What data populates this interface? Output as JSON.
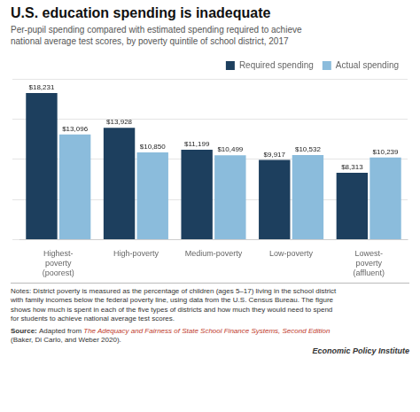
{
  "chart_data": {
    "type": "bar",
    "title": "U.S. education spending is inadequate",
    "subtitle": "Per-pupil spending compared with estimated spending required to achieve\nnational average test scores, by poverty quintile of school district, 2017",
    "categories": [
      "Highest-\npoverty\n(poorest)",
      "High-poverty",
      "Medium-poverty",
      "Low-poverty",
      "Lowest-\npoverty\n(affluent)"
    ],
    "series": [
      {
        "name": "Required spending",
        "color": "#1d3f5e",
        "values": [
          18231,
          13928,
          11199,
          9917,
          8313
        ],
        "value_labels": [
          "$18,231",
          "$13,928",
          "$11,199",
          "$9,917",
          "$8,313"
        ]
      },
      {
        "name": "Actual spending",
        "color": "#8bbcdc",
        "values": [
          13096,
          10850,
          10499,
          10532,
          10239
        ],
        "value_labels": [
          "$13,096",
          "$10,850",
          "$10,499",
          "$10,532",
          "$10,239"
        ]
      }
    ],
    "ylim": [
      0,
      20000
    ],
    "yticks": [
      0,
      5000,
      10000,
      15000,
      20000
    ],
    "grid": true,
    "legend": "upper right",
    "data_labels": true,
    "tick_labels": "x",
    "notes": "Notes: District poverty is measured as the percentage of children (ages 5–17) living in the school district\nwith family incomes below the federal poverty line, using data from the U.S. Census Bureau. The figure\nshows how much is spent in each of the five types of districts and how much they would need to spend\nfor students to achieve national average test scores.",
    "source": [
      "Source: ",
      "Adapted from ",
      "The Adequacy and Fairness of State School Finance Systems, Second Edition",
      "(Baker, Di Carlo, and Weber 2020)."
    ],
    "credit": "Economic Policy Institute"
  }
}
